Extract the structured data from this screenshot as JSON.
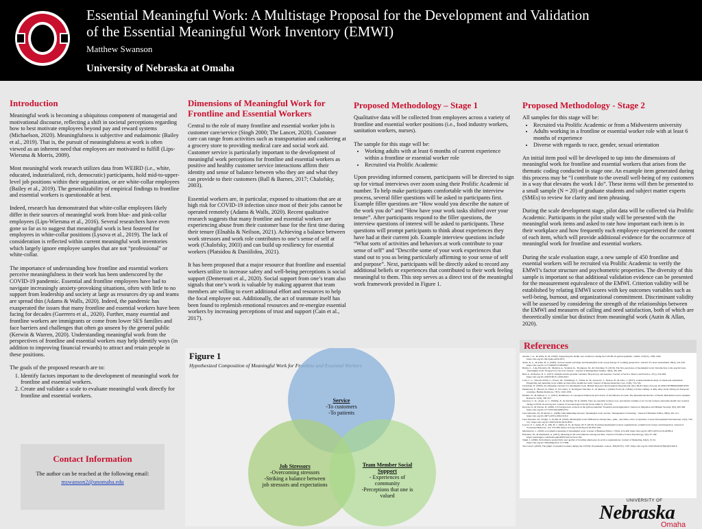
{
  "header": {
    "title_line1": "Essential Meaningful Work: A Multistage Proposal for the Development and Validation",
    "title_line2": "of the Essential Meaningful Work Inventory (EMWI)",
    "author": "Matthew Swanson",
    "affiliation": "University of Nebraska at Omaha"
  },
  "introduction": {
    "heading": "Introduction",
    "paragraphs": [
      "Meaningful work is becoming a ubiquitous component of managerial and motivational discourse, reflecting a shift in societal perceptions regarding how to best motivate employees beyond pay and reward systems (Michaelson, 2020). Meaningfulness is subjective and eudaimonic (Bailey et al., 2019). That is, the pursuit of meaningfulness at work is often viewed as an inherent need that employees are motivated to fulfill (Lips-Wiersma & Morris, 2009).",
      "Most meaningful work research utilizes data from WEIRD (i.e., white, educated, industrialized, rich, democratic) participants, hold mid-to-upper-level job positions within their organization, or are white-collar employees (Bailey et al., 2019). The generalizability of empirical findings to frontline and essential workers is questionable at best.",
      "Indeed, research has demonstrated that white-collar employees likely differ in their sources of meaningful work from blue- and pink-collar employees (Lips-Wiersma et al., 2016). Several researchers have even gone so far as to suggest that meaningful work is best fostered for employees in white-collar positions (Lysova et al., 2019). The lack of consideration is reflected within current meaningful work inventories which largely ignore employee samples that are not “professional” or white-collar.",
      "The importance of understanding how frontline and essential workers perceive meaningfulness in their work has been underscored by the COVID-19 pandemic. Essential and frontline employees have had to navigate increasingly anxiety-provoking situations, often with little to no support from leadership and society at large as resources dry up and teams are spread thin (Adams & Walls, 2020). Indeed, the pandemic has exasperated the issues that many frontline and essential workers have been facing for decades (Guerrero et al., 2020). Further, many essential and frontline workers are immigrants or come from lower SES families and face barriers and challenges that often go unseen by the general public (Kerwin & Warren, 2020). Understanding meaningful work from the perspectives of frontline and essential workers may help identify ways (in addition to improving financial rewards) to attract and retain people in these positions."
    ],
    "goals_intro": "The goals of the proposed research are to:",
    "goals": [
      "Identify factors important to the development of meaningful work for frontline and essential workers.",
      "Create and validate a scale to evaluate meaningful work directly for frontline and essential workers."
    ]
  },
  "contact": {
    "heading": "Contact Information",
    "text": "The author can be reached at the following email:",
    "email": "mswanson2@unomaha.edu"
  },
  "dimensions": {
    "heading": "Dimensions of Meaningful Work for Frontline and Essential Workers",
    "paragraphs": [
      "Central to the role of many frontline and essential worker jobs is customer care/service (Singh 2000; The Lancet, 2020). Customer care can range from activities such as transportation and cashiering at a grocery store to providing medical care and social work aid. Customer service is particularly important to the development of meaningful work perceptions for frontline and essential workers as positive and healthy customer service interactions affirm their identity and sense of balance between who they are and what they can provide to their customers (Ball & Barnes, 2017; Chalofsky, 2003).",
      "Essential workers are, in particular, exposed to situations that are at high risk for COVID-19 infection since most of their jobs cannot be operated remotely (Adams & Walls, 2020). Recent qualitative research suggests that many frontline and essential workers are experiencing abuse from their customer base for the first time during their tenure (Elnahla & Neilson, 2021). Achieving a balance between work stressors and work role contributes to one’s sense of self at work (Chalofsky, 2003) and can build up resiliency for essential workers (Platsidou & Daniilidou, 2021).",
      "It has been proposed that a major resource that frontline and essential workers utilize to increase safety and well-being perceptions is social support (Demerouti et al., 2020). Social support from one’s team also signals that one’s work is valuable by making apparent that team members are willing to exert additional effort and resources to help the focal employee out. Additionally, the act of teammate itself has been found to replenish emotional resources and re-energize essential workers by increasing perceptions of trust and support (Cain et al., 2017)."
    ]
  },
  "stage1": {
    "heading": "Proposed Methodology – Stage 1",
    "intro": "Qualitative data will be collected from employees across a variety of frontline and essential worker positions (i.e., food industry workers, sanitation workers, nurses).",
    "sample_intro": "The sample for this stage will be:",
    "sample_items": [
      "Working adults with at least 6 months of current experience within a frontline or essential worker role",
      "Recruited via Prolific Academic"
    ],
    "procedure": "Upon providing informed consent, participants will be directed to sign up for virtual interviews over zoom using their Prolific Academic id number. To help make participants comfortable with the interview process, several filler questions will be asked to participants first. Example filler questions are “How would you describe the nature of the work you do” and “How have your work tasks shifted over your tenure”. After participants respond to the filler questions, the interview questions of interest will be asked to participants. These questions will prompt participants to think about experiences they have had at their current job. Example interview questions include “What sorts of activities and behaviors at work contribute to your sense of self” and “Describe some of your work experiences that stand out to you as being particularly affirming to your sense of self and purpose”. Next, participants will be directly asked to record any additional beliefs or experiences that contributed to their work feeling meaningful to them. This step serves as a direct test of the meaningful work framework provided in Figure 1."
  },
  "stage2": {
    "heading": "Proposed Methodology - Stage 2",
    "sample_intro": "All samples for this stage will be:",
    "sample_items": [
      "Recruited via Prolific Academic or from a Midwestern university",
      "Adults working in a frontline or essential worker role with at least 6 months of experience",
      "Diverse with regards to race, gender, sexual orientation"
    ],
    "paragraphs": [
      "An initial item pool will be developed to tap into the dimensions of meaningful work for frontline and essential workers that arises from the thematic coding conducted in stage one. An example item generated during this process may be “I contribute to the overall well-being of my customers in a way that elevates the work I do”. These items will then be presented to a small sample (N = 20) of graduate students and subject matter experts (SMEs) to review for clarity and item phrasing.",
      "During the scale development stage, pilot data will be collected via Prolific Academic. Participants in the pilot study will be presented with the meaningful work items and asked to rate how important each item is in their workplace and how frequently each employee experienced the content of each item, which will provide additional evidence for the occurrence of meaningful work for frontline and essential workers.",
      "During the scale evaluation stage, a new sample of 450 frontline and essential workers will be recruited via Prolific Academic to verify the EMWI’s factor structure and psychometric properties. The diversity of this sample is important so that additional validation evidence can be presented for the measurement equivalence of the EMWI. Criterion validity will be established by relating EMWI scores with key outcomes variables such as well-being, burnout, and organizational commitment. Discriminant validity will be assessed by considering the strength of the relationships between the EMWI and measures of calling and need satisfaction, both of which are theoretically similar but distinct from meaningful work (Autin & Allan, 2020)."
    ]
  },
  "figure": {
    "label": "Figure 1",
    "caption": "Hypothesized Composition of Meaningful Work for Frontline and Essential Workers",
    "circles": [
      {
        "title": "Service",
        "items": [
          "-To customers",
          "-To patients"
        ]
      },
      {
        "title": "Job Stressors",
        "items": [
          "-Overcoming stressors",
          "-Striking a balance between job stressors and expectations"
        ]
      },
      {
        "title": "Team Member Social Support",
        "items": [
          "- Experiences of community",
          "-Perceptions that one is valued"
        ]
      }
    ]
  },
  "references": {
    "heading": "References",
    "items": [
      "Adams, J. G., & Walls, R. M. (2020). Supporting the health care workforce during the COVID-19 global epidemic. JAMA, 323(15), 1439-1440. https://doi.org/10.1001/jama.2020.3972",
      "Autin, K. L., & Allan, B. A. (2020). Socioeconomic privilege and meaningful work: A psychology of working perspective. Journal of Career Assessment, 28(2), 241-256. https://doi.org/10.1177/1069072719856307",
      "Bailey, C., Lips-Wiersma, M., Madden, A., Yeoman, R., Thompson, M., & Chalofsky, N. (2019). The five paradoxes of meaningful work: Introduction to the special issue ‘meaningful work: Prospects for the 21st century’. Journal of Management Studies, 56(3), 481-499.",
      "Ball, A., & Barnes, D. C. (2017). Delight and the grateful customer: Beyond joy and surprise. Journal of Service Theory and Practice, 27(1), 250-269. https://doi.org/10.1108/JSTP-01-2016-0013",
      "Cain, C. L., Taborda-Whitt, C., Frazer, M., Schellinger, S., White, K. M., Kaasovic, J., Nelson, B., & Citko, J. (2017). A mixed methods study of emotional exhaustion: Energizing and depleting work within an innovative healthcare team. Journal of Interprofessional Care, 31(6), 714-724.",
      "Chalofsky, N. (2003). An emerging construct for meaningful work. Human Resource Development International, 6(1), 69-83. https://doi.org/10.1080/1367886022000016785",
      "Demerouti, E., Hewett, R., Haun, V., De Gieter, S., Rodríguez-Sánchez, A., & Skakon, J. (2020). From job crafting to home crafting: A daily diary study among six European countries. Human Relations, 73(7), 1010-1035.",
      "Elnahla, N., & Neilson, L. C. (2021). Retaillance: A conceptual framework and review of surveillance in retail. The International Review of Retail, Distribution and Consumer Research, 31(3), 330-357.",
      "Guerrero, L. R., Avgar, A. C., Phillips, E., & Sterling, M. R. (2020). They are essential workers now, and should continue to be: Social workers and home health care workers during COVID-19 and beyond. Journal of Gerontological Social Work, 63(6-7), 574-576.",
      "Kerwin, D., & Warren, R. (2020). US foreign-born workers in the global pandemic: Essential and marginalized. Journal on Migration and Human Security, 8(3), 282-300. https://doi.org/10.1177/2331502420952752",
      "Lips-Wiersma, M., & Morris, L. (2009). Discriminating between ‘meaningful work’ and the ‘management of meaning’. Journal of Business Ethics, 88(3), 491-511. https://doi.org/10.1007/s10551-009-0118-9",
      "Lips-Wiersma, M., Wright, S., & Dik, B. (2016). Meaningful work: Differences among blue-, pink-, and white-collar occupations. Career Development International, 21(5), 534-551. https://doi.org/10.1108/CDI-04-2016-0052",
      "Lysova, E. I., Allan, B. A., Dik, B. J., Duffy, R. D., & Steger, M. F. (2019). Fostering meaningful work in organizations: A multi-level review and integration. Journal of Vocational Behavior, 110, 374-389. https://doi.org/10.1016/j.jvb.2018.07.004",
      "Michaelson, C. (2020). A normative meaning of meaningful work. Journal of Business Ethics, 170(3), 413-428. https://doi.org/10.1007/s10551-019-04389-0",
      "Platsidou, M., & Daniilidou, A. (2021). Meaning in life and resilience among teachers. Journal of Positive School Psychology, 5(2), 97-109. https://journalppw.com/index.php/JPPW/article/view/164",
      "Singh, J. (2000). Performance productivity and quality of frontline employees in service organizations. Journal of Marketing, 64(2), 15-34. https://doi.org/10.1509/jmkg.64.2.15.17999",
      "The Lancet. (2020). The plight of essential workers during the COVID-19 pandemic. Lancet, 395(10237), 1587. https://doi.org/10.1016/S0140-6736(20)31200-9"
    ]
  },
  "footer_logo": {
    "top": "UNIVERSITY OF",
    "name": "Nebraska",
    "campus": "Omaha"
  }
}
